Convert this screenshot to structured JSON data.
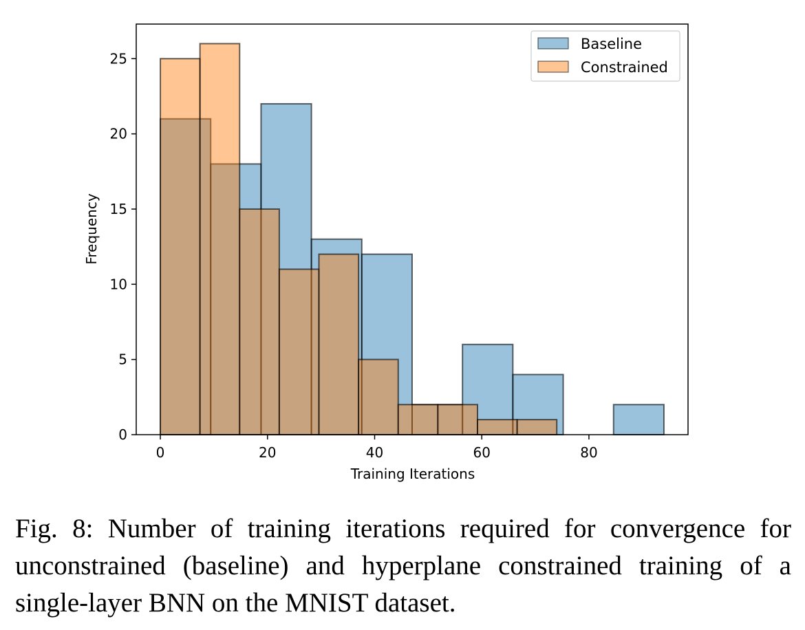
{
  "chart_data": {
    "type": "bar",
    "subtype": "overlapping-histogram",
    "xlabel": "Training Iterations",
    "ylabel": "Frequency",
    "xlim": [
      -4.5,
      98.5
    ],
    "ylim": [
      0,
      27.3
    ],
    "xticks": [
      0,
      20,
      40,
      60,
      80
    ],
    "yticks": [
      0,
      5,
      10,
      15,
      20,
      25
    ],
    "grid": false,
    "legend": {
      "placement": "top-right",
      "entries": [
        "Baseline",
        "Constrained"
      ]
    },
    "series": [
      {
        "name": "Baseline",
        "color": "#1f77b4",
        "opacity": 0.45,
        "bins": [
          {
            "x0": 0,
            "x1": 9.4,
            "value": 21
          },
          {
            "x0": 9.4,
            "x1": 18.8,
            "value": 18
          },
          {
            "x0": 18.8,
            "x1": 28.2,
            "value": 22
          },
          {
            "x0": 28.2,
            "x1": 37.6,
            "value": 13
          },
          {
            "x0": 37.6,
            "x1": 47.0,
            "value": 12
          },
          {
            "x0": 47.0,
            "x1": 56.4,
            "value": 2
          },
          {
            "x0": 56.4,
            "x1": 65.8,
            "value": 6
          },
          {
            "x0": 65.8,
            "x1": 75.2,
            "value": 4
          },
          {
            "x0": 75.2,
            "x1": 84.6,
            "value": 0
          },
          {
            "x0": 84.6,
            "x1": 94.0,
            "value": 2
          }
        ]
      },
      {
        "name": "Constrained",
        "color": "#ff7f0e",
        "opacity": 0.45,
        "bins": [
          {
            "x0": 0,
            "x1": 7.4,
            "value": 25
          },
          {
            "x0": 7.4,
            "x1": 14.8,
            "value": 26
          },
          {
            "x0": 14.8,
            "x1": 22.2,
            "value": 15
          },
          {
            "x0": 22.2,
            "x1": 29.6,
            "value": 11
          },
          {
            "x0": 29.6,
            "x1": 37.0,
            "value": 12
          },
          {
            "x0": 37.0,
            "x1": 44.4,
            "value": 5
          },
          {
            "x0": 44.4,
            "x1": 51.8,
            "value": 2
          },
          {
            "x0": 51.8,
            "x1": 59.2,
            "value": 2
          },
          {
            "x0": 59.2,
            "x1": 66.6,
            "value": 1
          },
          {
            "x0": 66.6,
            "x1": 74.0,
            "value": 1
          }
        ]
      }
    ]
  },
  "caption": "Fig. 8: Number of training iterations required for convergence for unconstrained (baseline) and hyperplane constrained train­ing of a single-layer BNN on the MNIST dataset."
}
